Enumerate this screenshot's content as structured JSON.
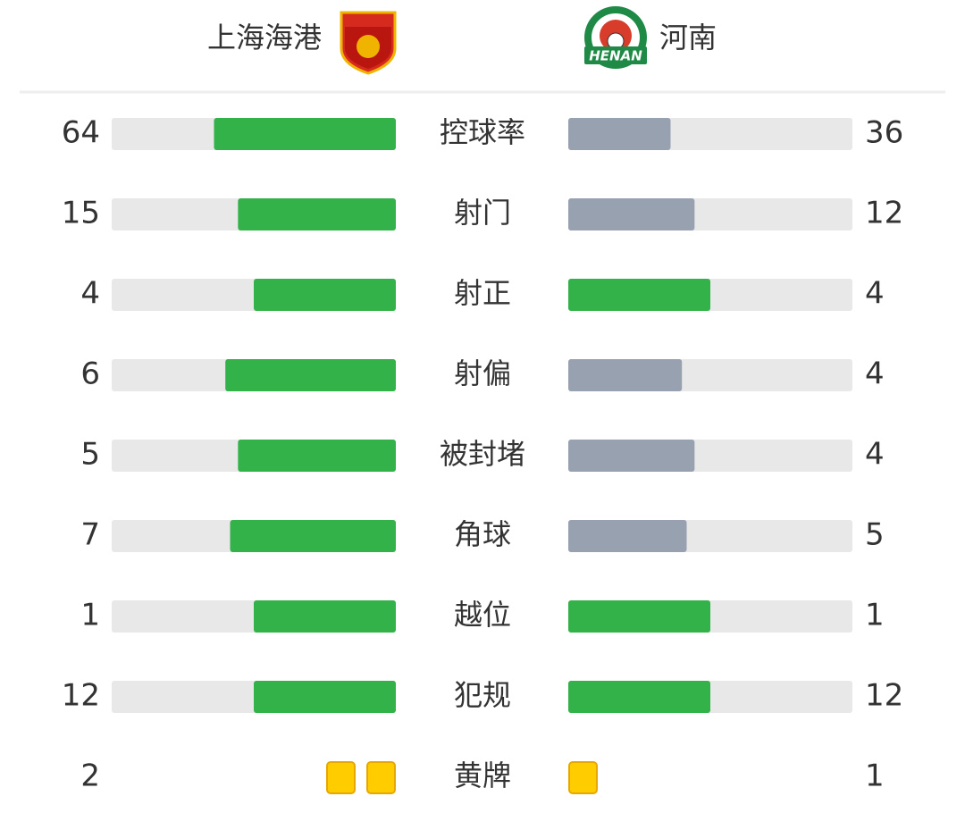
{
  "home_team": {
    "name": "上海海港"
  },
  "away_team": {
    "name": "河南",
    "logo_text": "HENAN"
  },
  "stats": [
    {
      "label": "控球率",
      "home": 64,
      "away": 36
    },
    {
      "label": "射门",
      "home": 15,
      "away": 12
    },
    {
      "label": "射正",
      "home": 4,
      "away": 4
    },
    {
      "label": "射偏",
      "home": 6,
      "away": 4
    },
    {
      "label": "被封堵",
      "home": 5,
      "away": 4
    },
    {
      "label": "角球",
      "home": 7,
      "away": 5
    },
    {
      "label": "越位",
      "home": 1,
      "away": 1
    },
    {
      "label": "犯规",
      "home": 12,
      "away": 12
    }
  ],
  "cards": {
    "label": "黄牌",
    "home": 2,
    "away": 1
  }
}
